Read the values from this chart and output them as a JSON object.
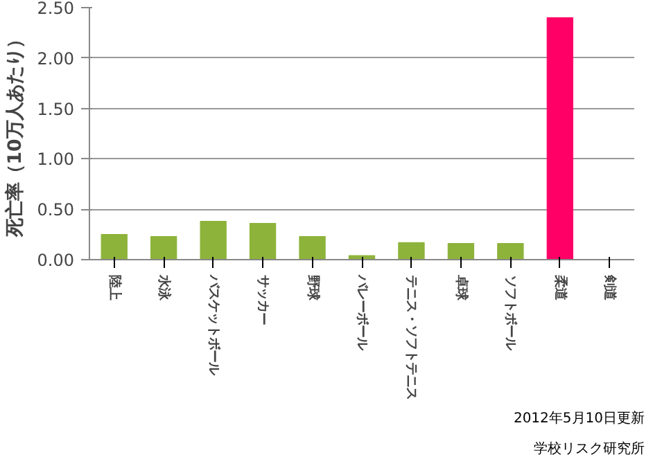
{
  "chart_data": {
    "type": "bar",
    "ylabel": "死亡率（10万人あたり）",
    "categories": [
      "陸上",
      "水泳",
      "バスケットボール",
      "サッカー",
      "野球",
      "バレーボール",
      "テニス・ソフトテニス",
      "卓球",
      "ソフトボール",
      "柔道",
      "剣道"
    ],
    "values": [
      0.25,
      0.23,
      0.38,
      0.36,
      0.23,
      0.04,
      0.17,
      0.16,
      0.16,
      2.4,
      0
    ],
    "colors": [
      "#8db33a",
      "#8db33a",
      "#8db33a",
      "#8db33a",
      "#8db33a",
      "#8db33a",
      "#8db33a",
      "#8db33a",
      "#8db33a",
      "#ff0066",
      "#8db33a"
    ],
    "ylim": [
      0,
      2.5
    ],
    "yticks": [
      {
        "value": 0,
        "label": "0.00"
      },
      {
        "value": 0.5,
        "label": "0.50"
      },
      {
        "value": 1,
        "label": "1.00"
      },
      {
        "value": 1.5,
        "label": "1.50"
      },
      {
        "value": 2,
        "label": "2.00"
      },
      {
        "value": 2.5,
        "label": "2.50"
      }
    ],
    "grid": "y",
    "annotations": [
      "2012年5月10日更新",
      "学校リスク研究所"
    ]
  }
}
